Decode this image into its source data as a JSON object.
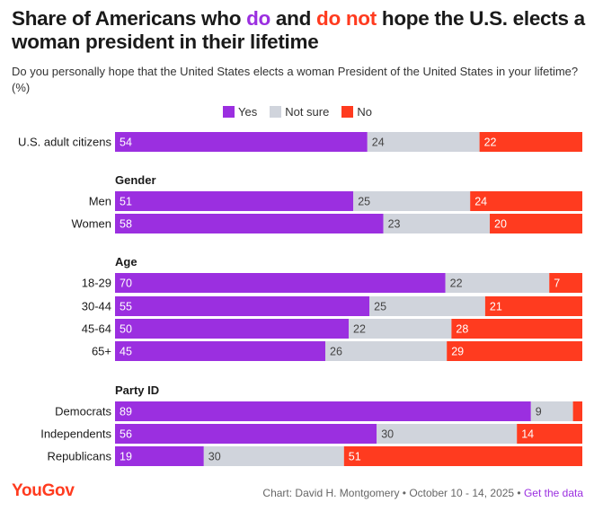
{
  "title": {
    "part1": "Share of Americans who ",
    "highlight1": "do",
    "part2": " and ",
    "highlight2": "do not",
    "part3": " hope the U.S. elects a woman president in their lifetime"
  },
  "subtitle": "Do you personally hope that the United States elects a woman President of the United States in your lifetime? (%)",
  "colors": {
    "yes": "#9b2fe0",
    "not_sure": "#d0d4dc",
    "no": "#ff3b1f"
  },
  "legend": [
    {
      "key": "yes",
      "label": "Yes"
    },
    {
      "key": "not_sure",
      "label": "Not sure"
    },
    {
      "key": "no",
      "label": "No"
    }
  ],
  "chart_data": {
    "type": "bar",
    "stacked": true,
    "orientation": "horizontal",
    "series": [
      "Yes",
      "Not sure",
      "No"
    ],
    "groups": [
      {
        "heading": "",
        "rows": [
          {
            "label": "U.S. adult citizens",
            "values": [
              54,
              24,
              22
            ]
          }
        ]
      },
      {
        "heading": "Gender",
        "rows": [
          {
            "label": "Men",
            "values": [
              51,
              25,
              24
            ]
          },
          {
            "label": "Women",
            "values": [
              58,
              23,
              20
            ]
          }
        ]
      },
      {
        "heading": "Age",
        "rows": [
          {
            "label": "18-29",
            "values": [
              70,
              22,
              7
            ]
          },
          {
            "label": "30-44",
            "values": [
              55,
              25,
              21
            ]
          },
          {
            "label": "45-64",
            "values": [
              50,
              22,
              28
            ]
          },
          {
            "label": "65+",
            "values": [
              45,
              26,
              29
            ]
          }
        ]
      },
      {
        "heading": "Party ID",
        "rows": [
          {
            "label": "Democrats",
            "values": [
              89,
              9,
              2
            ],
            "hide_labels": [
              false,
              false,
              true
            ]
          },
          {
            "label": "Independents",
            "values": [
              56,
              30,
              14
            ]
          },
          {
            "label": "Republicans",
            "values": [
              19,
              30,
              51
            ]
          }
        ]
      }
    ]
  },
  "footer": {
    "brand": "YouGov",
    "credit": "Chart: David H. Montgomery • October 10 - 14, 2025 • ",
    "link": "Get the data"
  }
}
